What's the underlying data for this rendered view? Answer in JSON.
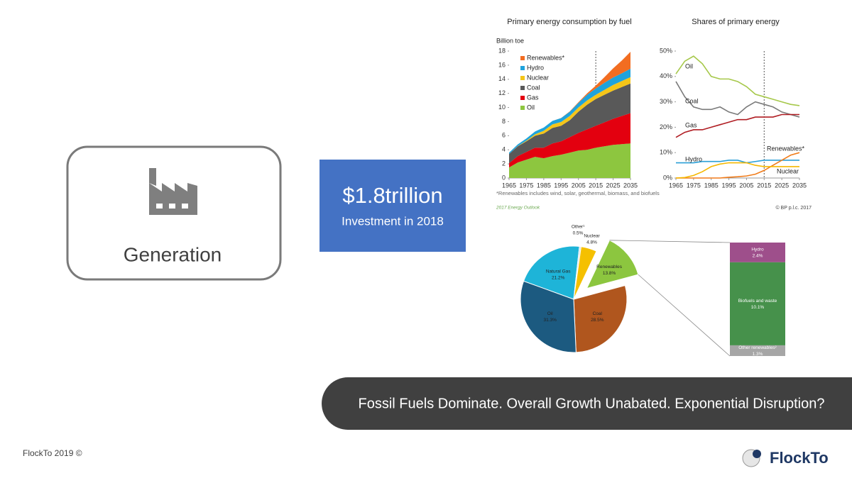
{
  "slide": {
    "box_label": "Generation",
    "investment_amount": "$1.8trillion",
    "investment_caption": "Investment in 2018",
    "banner": "Fossil Fuels Dominate.  Overall Growth Unabated. Exponential Disruption?",
    "footer": "FlockTo 2019 ©",
    "logo": "FlockTo"
  },
  "chart_data": [
    {
      "type": "stacked-area",
      "title": "Primary energy consumption by fuel",
      "y_label": "Billion toe",
      "footnote": "*Renewables includes wind, solar, geothermal, biomass, and biofuels",
      "source": "2017 Energy Outlook",
      "x": [
        1965,
        1970,
        1975,
        1980,
        1985,
        1990,
        1995,
        2000,
        2005,
        2010,
        2015,
        2020,
        2025,
        2030,
        2035
      ],
      "xlim": [
        1965,
        2035
      ],
      "xticks": [
        1965,
        1975,
        1985,
        1995,
        2005,
        2015,
        2025,
        2035
      ],
      "ylim": [
        0,
        18
      ],
      "yticks": [
        0,
        2,
        4,
        6,
        8,
        10,
        12,
        14,
        16,
        18
      ],
      "series": [
        {
          "name": "Oil",
          "color": "#8dc63f",
          "values": [
            1.5,
            2.2,
            2.6,
            3.0,
            2.8,
            3.1,
            3.3,
            3.6,
            3.9,
            4.0,
            4.3,
            4.5,
            4.7,
            4.8,
            4.9
          ]
        },
        {
          "name": "Gas",
          "color": "#e3000f",
          "values": [
            0.6,
            0.9,
            1.1,
            1.3,
            1.5,
            1.8,
            1.9,
            2.2,
            2.5,
            2.9,
            3.1,
            3.4,
            3.7,
            4.0,
            4.3
          ]
        },
        {
          "name": "Coal",
          "color": "#595959",
          "values": [
            1.3,
            1.4,
            1.5,
            1.7,
            2.0,
            2.2,
            2.2,
            2.4,
            3.0,
            3.5,
            3.8,
            3.9,
            4.0,
            4.1,
            4.2
          ]
        },
        {
          "name": "Nuclear",
          "color": "#f5c518",
          "values": [
            0,
            0.02,
            0.1,
            0.2,
            0.4,
            0.5,
            0.55,
            0.6,
            0.6,
            0.6,
            0.6,
            0.7,
            0.8,
            0.85,
            0.9
          ]
        },
        {
          "name": "Hydro",
          "color": "#1fa3dc",
          "values": [
            0.2,
            0.25,
            0.3,
            0.4,
            0.45,
            0.5,
            0.55,
            0.6,
            0.65,
            0.8,
            0.9,
            1.0,
            1.05,
            1.1,
            1.2
          ]
        },
        {
          "name": "Renewables*",
          "color": "#f26d21",
          "values": [
            0,
            0,
            0,
            0,
            0,
            0,
            0.01,
            0.05,
            0.1,
            0.2,
            0.4,
            0.8,
            1.3,
            1.8,
            2.4
          ]
        }
      ]
    },
    {
      "type": "line",
      "title": "Shares of primary energy",
      "source": "© BP p.l.c. 2017",
      "x": [
        1965,
        1970,
        1975,
        1980,
        1985,
        1990,
        1995,
        2000,
        2005,
        2010,
        2015,
        2020,
        2025,
        2030,
        2035
      ],
      "xlim": [
        1965,
        2035
      ],
      "xticks": [
        1965,
        1975,
        1985,
        1995,
        2005,
        2015,
        2025,
        2035
      ],
      "ylim": [
        0,
        50
      ],
      "yticks": [
        {
          "value": 0,
          "label": "0%"
        },
        {
          "value": 10,
          "label": "10%"
        },
        {
          "value": 20,
          "label": "20%"
        },
        {
          "value": 30,
          "label": "30%"
        },
        {
          "value": 40,
          "label": "40%"
        },
        {
          "value": 50,
          "label": "50%"
        }
      ],
      "series": [
        {
          "name": "Oil",
          "color": "#a6c84a",
          "values": [
            41,
            46,
            48,
            45,
            40,
            39,
            39,
            38,
            36,
            33,
            32,
            31,
            30,
            29,
            28.5
          ]
        },
        {
          "name": "Coal",
          "color": "#7a7a7a",
          "values": [
            38,
            32,
            28,
            27,
            27,
            28,
            26,
            25,
            28,
            30,
            29,
            28,
            26,
            25,
            24
          ]
        },
        {
          "name": "Gas",
          "color": "#b01c22",
          "values": [
            16,
            18,
            19,
            19,
            20,
            21,
            22,
            23,
            23,
            24,
            24,
            24,
            25,
            25,
            25
          ]
        },
        {
          "name": "Hydro",
          "color": "#2a9fd6",
          "values": [
            6,
            6,
            6,
            6.5,
            6.5,
            6.5,
            7,
            7,
            6,
            6.5,
            7,
            7,
            7,
            7,
            7
          ]
        },
        {
          "name": "Renewables*",
          "color": "#f07c1b",
          "values": [
            0,
            0,
            0,
            0,
            0,
            0,
            0.3,
            0.5,
            0.8,
            1.5,
            3,
            5,
            7,
            9,
            10
          ]
        },
        {
          "name": "Nuclear",
          "color": "#f5b800",
          "values": [
            0,
            0.2,
            1,
            2.5,
            4.5,
            5.5,
            6,
            6,
            6,
            5,
            4.5,
            4.5,
            4.5,
            4.5,
            4.5
          ]
        }
      ]
    },
    {
      "type": "pie",
      "categories": [
        "Natural Gas",
        "Other¹",
        "Nuclear",
        "Renewables",
        "Coal",
        "Oil"
      ],
      "values": [
        21.2,
        0.5,
        4.8,
        13.8,
        28.5,
        31.3
      ],
      "value_labels": [
        "21.2%",
        "0.5%",
        "4.8%",
        "13.8%",
        "28.5%",
        "31.3%"
      ],
      "colors": [
        "#1eb4d8",
        "#d9d9d9",
        "#f5c000",
        "#8cc63f",
        "#b0561e",
        "#1c5a80"
      ]
    },
    {
      "type": "stacked-bar",
      "categories": [
        "Hydro",
        "Biofuels and waste",
        "Other renewables²"
      ],
      "values": [
        2.4,
        10.1,
        1.3
      ],
      "value_labels": [
        "2.4%",
        "10.1%",
        "1.3%"
      ],
      "colors": [
        "#9e4f8b",
        "#46914b",
        "#a6a6a6"
      ]
    }
  ]
}
